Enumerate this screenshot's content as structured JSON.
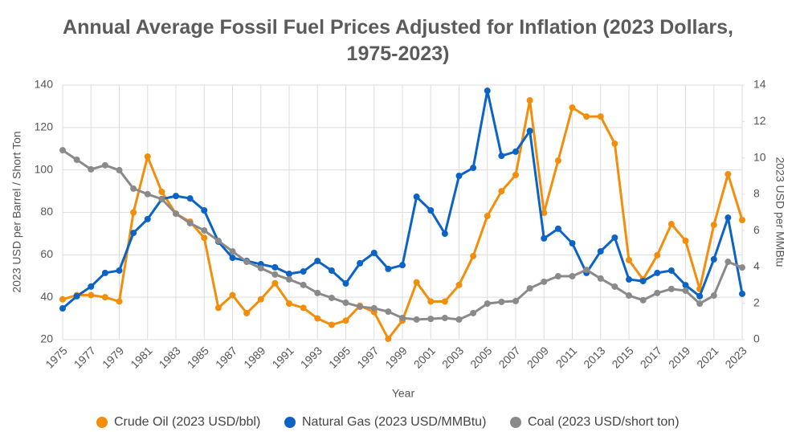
{
  "chart_data": {
    "type": "line",
    "title": "Annual Average Fossil Fuel Prices Adjusted for Inflation (2023 Dollars, 1975-2023)",
    "x_label": "Year",
    "y_label": "2023 USD per Barrel / Short Ton",
    "y2_label": "2023 USD per MMBtu",
    "x": [
      1975,
      1976,
      1977,
      1978,
      1979,
      1980,
      1981,
      1982,
      1983,
      1984,
      1985,
      1986,
      1987,
      1988,
      1989,
      1990,
      1991,
      1992,
      1993,
      1994,
      1995,
      1996,
      1997,
      1998,
      1999,
      2000,
      2001,
      2002,
      2003,
      2004,
      2005,
      2006,
      2007,
      2008,
      2009,
      2010,
      2011,
      2012,
      2013,
      2014,
      2015,
      2016,
      2017,
      2018,
      2019,
      2020,
      2021,
      2022,
      2023
    ],
    "xlim": [
      1975,
      2023
    ],
    "xticks": [
      1975,
      1977,
      1979,
      1981,
      1983,
      1985,
      1987,
      1989,
      1991,
      1993,
      1995,
      1997,
      1999,
      2001,
      2003,
      2005,
      2007,
      2009,
      2011,
      2013,
      2015,
      2017,
      2019,
      2021,
      2023
    ],
    "ylim": [
      20,
      140
    ],
    "yticks": [
      20,
      40,
      60,
      80,
      100,
      120,
      140
    ],
    "y2lim": [
      0,
      14
    ],
    "y2ticks": [
      0,
      2,
      4,
      6,
      8,
      10,
      12,
      14
    ],
    "grid": true,
    "legend": "bottom",
    "series": [
      {
        "name": "Crude Oil (2023 USD/bbl)",
        "color": "#f28e0c",
        "axis": "y",
        "values": [
          39,
          41,
          41,
          40,
          38,
          80,
          106.3,
          89.7,
          79.4,
          75.6,
          68,
          35,
          41,
          32.5,
          39,
          46.6,
          37,
          35,
          30,
          27,
          29,
          36,
          33,
          20.4,
          29,
          47,
          38,
          38,
          45.8,
          59.4,
          78.3,
          90,
          97.6,
          132.8,
          79.8,
          104.4,
          129.4,
          125.2,
          125.2,
          112.4,
          57.5,
          48.4,
          59.8,
          74.5,
          66.6,
          43.9,
          74.1,
          98,
          76.4
        ]
      },
      {
        "name": "Natural Gas (2023 USD/MMBtu)",
        "color": "#0b63c5",
        "axis": "y2",
        "values": [
          1.72,
          2.39,
          2.92,
          3.67,
          3.8,
          5.87,
          6.63,
          7.73,
          7.9,
          7.77,
          7.11,
          5.39,
          4.5,
          4.33,
          4.15,
          3.98,
          3.62,
          3.75,
          4.33,
          3.8,
          3.09,
          4.2,
          4.77,
          3.89,
          4.1,
          7.86,
          7.11,
          5.83,
          9.01,
          9.45,
          13.69,
          10.11,
          10.34,
          11.48,
          5.57,
          6.1,
          5.3,
          3.67,
          4.86,
          5.61,
          3.31,
          3.22,
          3.67,
          3.8,
          3.0,
          2.39,
          4.42,
          6.71,
          2.52
        ]
      },
      {
        "name": "Coal (2023 USD/short ton)",
        "color": "#8a8a8a",
        "axis": "y",
        "values": [
          109.3,
          104.8,
          100.3,
          102.2,
          99.9,
          91.2,
          88.6,
          86.3,
          79.4,
          74.9,
          71.5,
          66.6,
          61.6,
          56.7,
          53.7,
          50.7,
          48.4,
          45.8,
          42,
          39.7,
          37.4,
          35.5,
          34.8,
          33.2,
          30.2,
          29.5,
          29.8,
          30.2,
          29.5,
          32.5,
          37,
          37.8,
          38.2,
          44.2,
          47.3,
          49.9,
          49.9,
          52.9,
          48.8,
          45,
          40.8,
          38.6,
          42,
          43.9,
          43.1,
          37,
          40.8,
          56.7,
          54
        ]
      }
    ]
  }
}
